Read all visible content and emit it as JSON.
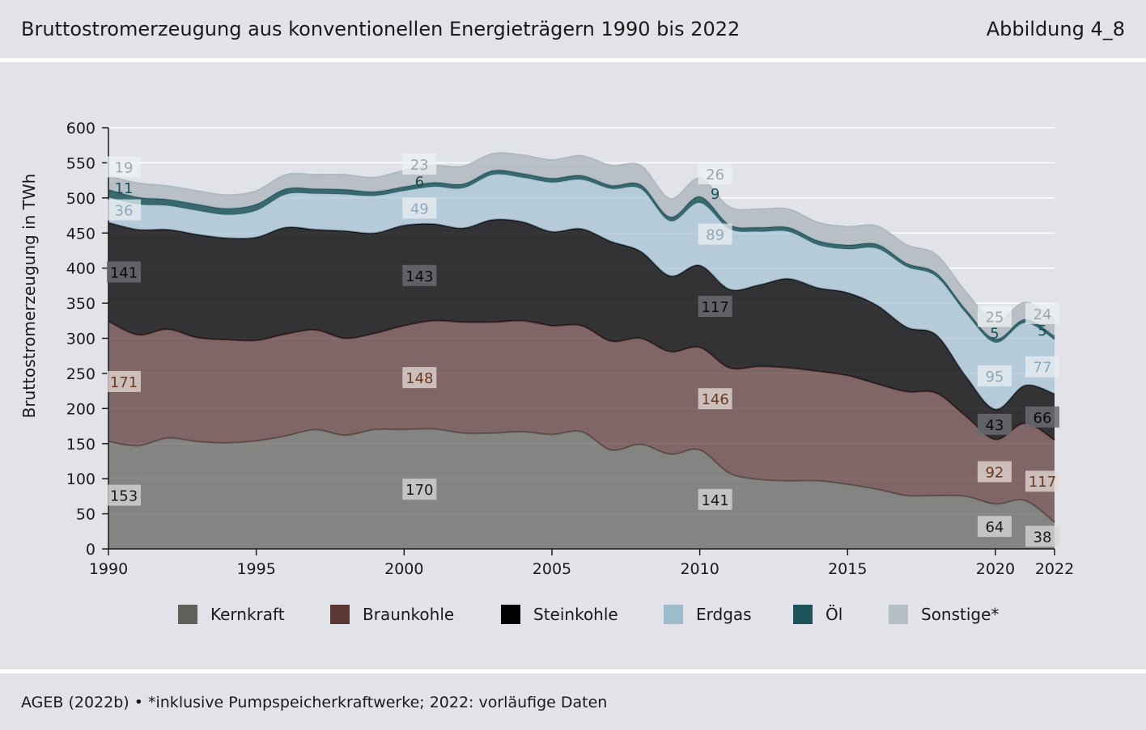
{
  "header": {
    "title": "Bruttostromerzeugung aus konventionellen Energieträgern 1990 bis 2022",
    "figure_label": "Abbildung 4_8"
  },
  "footer": {
    "source": "AGEB (2022b) • *inklusive Pumpspeicherkraftwerke; 2022: vorläufige Daten"
  },
  "chart_data": {
    "type": "area",
    "title": "Bruttostromerzeugung aus konventionellen Energieträgern 1990 bis 2022",
    "ylabel": "Bruttostromerzeugung in TWh",
    "xlabel": "",
    "ylim": [
      0,
      600
    ],
    "yticks": [
      "0",
      "50",
      "100",
      "150",
      "200",
      "250",
      "300",
      "350",
      "400",
      "450",
      "500",
      "550",
      "600"
    ],
    "xticks": [
      "1990",
      "1995",
      "2000",
      "2005",
      "2010",
      "2015",
      "2020",
      "2022"
    ],
    "grid": true,
    "legend_position": "bottom",
    "x": [
      1990,
      1991,
      1992,
      1993,
      1994,
      1995,
      1996,
      1997,
      1998,
      1999,
      2000,
      2001,
      2002,
      2003,
      2004,
      2005,
      2006,
      2007,
      2008,
      2009,
      2010,
      2011,
      2012,
      2013,
      2014,
      2015,
      2016,
      2017,
      2018,
      2019,
      2020,
      2021,
      2022
    ],
    "series": [
      {
        "name": "Kernkraft",
        "color": "#5f605c",
        "label_color": "#1a1a1a",
        "values": [
          153,
          147,
          158,
          153,
          151,
          154,
          161,
          170,
          162,
          170,
          170,
          171,
          165,
          165,
          167,
          163,
          167,
          141,
          149,
          135,
          141,
          108,
          99,
          97,
          97,
          92,
          85,
          76,
          76,
          75,
          64,
          69,
          38
        ]
      },
      {
        "name": "Braunkohle",
        "color": "#5b3634",
        "label_color": "#6a3a20",
        "values": [
          171,
          158,
          155,
          148,
          147,
          143,
          145,
          142,
          138,
          137,
          148,
          154,
          158,
          158,
          158,
          155,
          151,
          155,
          151,
          146,
          146,
          150,
          161,
          161,
          156,
          155,
          150,
          148,
          146,
          114,
          92,
          110,
          117
        ]
      },
      {
        "name": "Steinkohle",
        "color": "#0c0c0f",
        "label_color": "#111111",
        "values": [
          141,
          150,
          142,
          147,
          145,
          147,
          152,
          143,
          153,
          143,
          143,
          138,
          134,
          146,
          141,
          134,
          138,
          142,
          124,
          108,
          117,
          112,
          116,
          127,
          119,
          118,
          112,
          92,
          83,
          57,
          43,
          54,
          66
        ]
      },
      {
        "name": "Erdgas",
        "color": "#a5c2d2",
        "label_color": "#8fa9b8",
        "values": [
          36,
          36,
          34,
          34,
          33,
          38,
          47,
          51,
          52,
          53,
          49,
          53,
          57,
          64,
          63,
          70,
          70,
          75,
          89,
          78,
          89,
          86,
          76,
          67,
          61,
          62,
          81,
          86,
          83,
          90,
          95,
          89,
          77
        ]
      },
      {
        "name": "Öl",
        "color": "#1b5358",
        "label_color": "#1b4f55",
        "values": [
          11,
          10,
          9,
          9,
          9,
          9,
          8,
          7,
          7,
          6,
          6,
          6,
          6,
          6,
          6,
          6,
          6,
          5,
          6,
          6,
          9,
          6,
          6,
          6,
          6,
          6,
          6,
          5,
          5,
          5,
          5,
          5,
          5
        ]
      },
      {
        "name": "Sonstige*",
        "color": "#b0b9c0",
        "label_color": "#9ea7ae",
        "values": [
          19,
          20,
          19,
          19,
          19,
          19,
          20,
          20,
          21,
          20,
          23,
          24,
          25,
          24,
          26,
          26,
          28,
          28,
          27,
          26,
          26,
          25,
          26,
          26,
          26,
          26,
          26,
          26,
          26,
          25,
          25,
          24,
          24
        ]
      }
    ],
    "data_labels": [
      {
        "series": "Kernkraft",
        "year": 1990,
        "value": "153"
      },
      {
        "series": "Kernkraft",
        "year": 2000,
        "value": "170"
      },
      {
        "series": "Kernkraft",
        "year": 2010,
        "value": "141"
      },
      {
        "series": "Kernkraft",
        "year": 2020,
        "value": "64"
      },
      {
        "series": "Kernkraft",
        "year": 2022,
        "value": "38"
      },
      {
        "series": "Braunkohle",
        "year": 1990,
        "value": "171"
      },
      {
        "series": "Braunkohle",
        "year": 2000,
        "value": "148"
      },
      {
        "series": "Braunkohle",
        "year": 2010,
        "value": "146"
      },
      {
        "series": "Braunkohle",
        "year": 2020,
        "value": "92"
      },
      {
        "series": "Braunkohle",
        "year": 2022,
        "value": "117"
      },
      {
        "series": "Steinkohle",
        "year": 1990,
        "value": "141"
      },
      {
        "series": "Steinkohle",
        "year": 2000,
        "value": "143"
      },
      {
        "series": "Steinkohle",
        "year": 2010,
        "value": "117"
      },
      {
        "series": "Steinkohle",
        "year": 2020,
        "value": "43"
      },
      {
        "series": "Steinkohle",
        "year": 2022,
        "value": "66"
      },
      {
        "series": "Erdgas",
        "year": 1990,
        "value": "36"
      },
      {
        "series": "Erdgas",
        "year": 2000,
        "value": "49"
      },
      {
        "series": "Erdgas",
        "year": 2010,
        "value": "89"
      },
      {
        "series": "Erdgas",
        "year": 2020,
        "value": "95"
      },
      {
        "series": "Erdgas",
        "year": 2022,
        "value": "77"
      },
      {
        "series": "Öl",
        "year": 1990,
        "value": "11"
      },
      {
        "series": "Öl",
        "year": 2000,
        "value": "6"
      },
      {
        "series": "Öl",
        "year": 2010,
        "value": "9"
      },
      {
        "series": "Öl",
        "year": 2020,
        "value": "5"
      },
      {
        "series": "Öl",
        "year": 2022,
        "value": "5"
      },
      {
        "series": "Sonstige*",
        "year": 1990,
        "value": "19"
      },
      {
        "series": "Sonstige*",
        "year": 2000,
        "value": "23"
      },
      {
        "series": "Sonstige*",
        "year": 2010,
        "value": "26"
      },
      {
        "series": "Sonstige*",
        "year": 2020,
        "value": "25"
      },
      {
        "series": "Sonstige*",
        "year": 2022,
        "value": "24"
      }
    ]
  }
}
